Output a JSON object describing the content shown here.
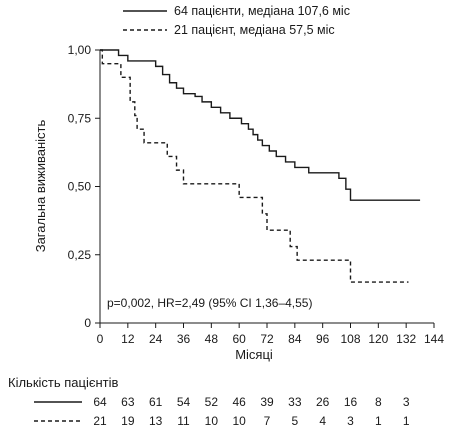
{
  "chart_data": {
    "type": "line",
    "xlabel": "Місяці",
    "ylabel": "Загальна виживаність",
    "xlim": [
      0,
      144
    ],
    "ylim": [
      0,
      1
    ],
    "xticks": [
      "0",
      "12",
      "24",
      "36",
      "48",
      "60",
      "72",
      "84",
      "96",
      "108",
      "120",
      "132",
      "144"
    ],
    "yticks": [
      "0",
      "0,25",
      "0,50",
      "0,75",
      "1,00"
    ],
    "grid": false,
    "legend_position": "top",
    "annotation": "p=0,002, HR=2,49 (95% CI 1,36–4,55)",
    "series": [
      {
        "name": "64 пацієнти, медіана 107,6 міс",
        "style": "solid",
        "color": "#1a1a1a",
        "steps": [
          [
            0,
            1.0
          ],
          [
            8,
            0.98
          ],
          [
            12,
            0.96
          ],
          [
            24,
            0.94
          ],
          [
            27,
            0.91
          ],
          [
            30,
            0.88
          ],
          [
            33,
            0.86
          ],
          [
            36,
            0.84
          ],
          [
            41,
            0.83
          ],
          [
            44,
            0.81
          ],
          [
            48,
            0.79
          ],
          [
            52,
            0.77
          ],
          [
            56,
            0.75
          ],
          [
            61,
            0.73
          ],
          [
            64,
            0.71
          ],
          [
            66,
            0.69
          ],
          [
            68,
            0.67
          ],
          [
            70,
            0.65
          ],
          [
            73,
            0.63
          ],
          [
            76,
            0.61
          ],
          [
            80,
            0.59
          ],
          [
            84,
            0.57
          ],
          [
            90,
            0.55
          ],
          [
            103,
            0.53
          ],
          [
            106,
            0.49
          ],
          [
            108,
            0.45
          ],
          [
            138,
            0.45
          ]
        ]
      },
      {
        "name": "21 пацієнт, медіана 57,5 міс",
        "style": "dashed",
        "color": "#1a1a1a",
        "steps": [
          [
            0,
            1.0
          ],
          [
            1,
            0.95
          ],
          [
            9,
            0.9
          ],
          [
            13,
            0.81
          ],
          [
            15,
            0.76
          ],
          [
            16,
            0.71
          ],
          [
            19,
            0.66
          ],
          [
            29,
            0.61
          ],
          [
            33,
            0.56
          ],
          [
            36,
            0.51
          ],
          [
            60,
            0.46
          ],
          [
            70,
            0.4
          ],
          [
            72,
            0.34
          ],
          [
            82,
            0.28
          ],
          [
            85,
            0.23
          ],
          [
            108,
            0.15
          ],
          [
            133,
            0.15
          ]
        ]
      }
    ]
  },
  "risk_table": {
    "title": "Кількість пацієнтів",
    "rows": [
      {
        "style": "solid",
        "values": [
          "64",
          "63",
          "61",
          "54",
          "52",
          "46",
          "39",
          "33",
          "26",
          "16",
          "8",
          "3"
        ]
      },
      {
        "style": "dashed",
        "values": [
          "21",
          "19",
          "13",
          "11",
          "10",
          "10",
          "7",
          "5",
          "4",
          "3",
          "1",
          "1"
        ]
      }
    ]
  }
}
